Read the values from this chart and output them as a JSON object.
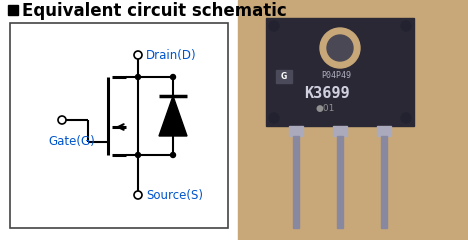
{
  "title": "Equivalent circuit schematic",
  "title_color": "#000000",
  "title_fontsize": 12,
  "title_fontweight": "bold",
  "title_square_color": "#000000",
  "background_color": "#ffffff",
  "label_drain": "Drain(D)",
  "label_gate": "Gate(G)",
  "label_source": "Source(S)",
  "label_color": "#0055cc",
  "label_fontsize": 8.5,
  "line_color": "#000000",
  "photo_bg": "#c8a878",
  "transistor_body_color": "#2a2835",
  "transistor_hole_color": "#c8a878",
  "transistor_hole_inner": "#4a4855",
  "transistor_text_color": "#cccccc",
  "transistor_text_k3699": "#dddddd",
  "pin_color": "#9999aa",
  "pin_shadow": "#777788"
}
